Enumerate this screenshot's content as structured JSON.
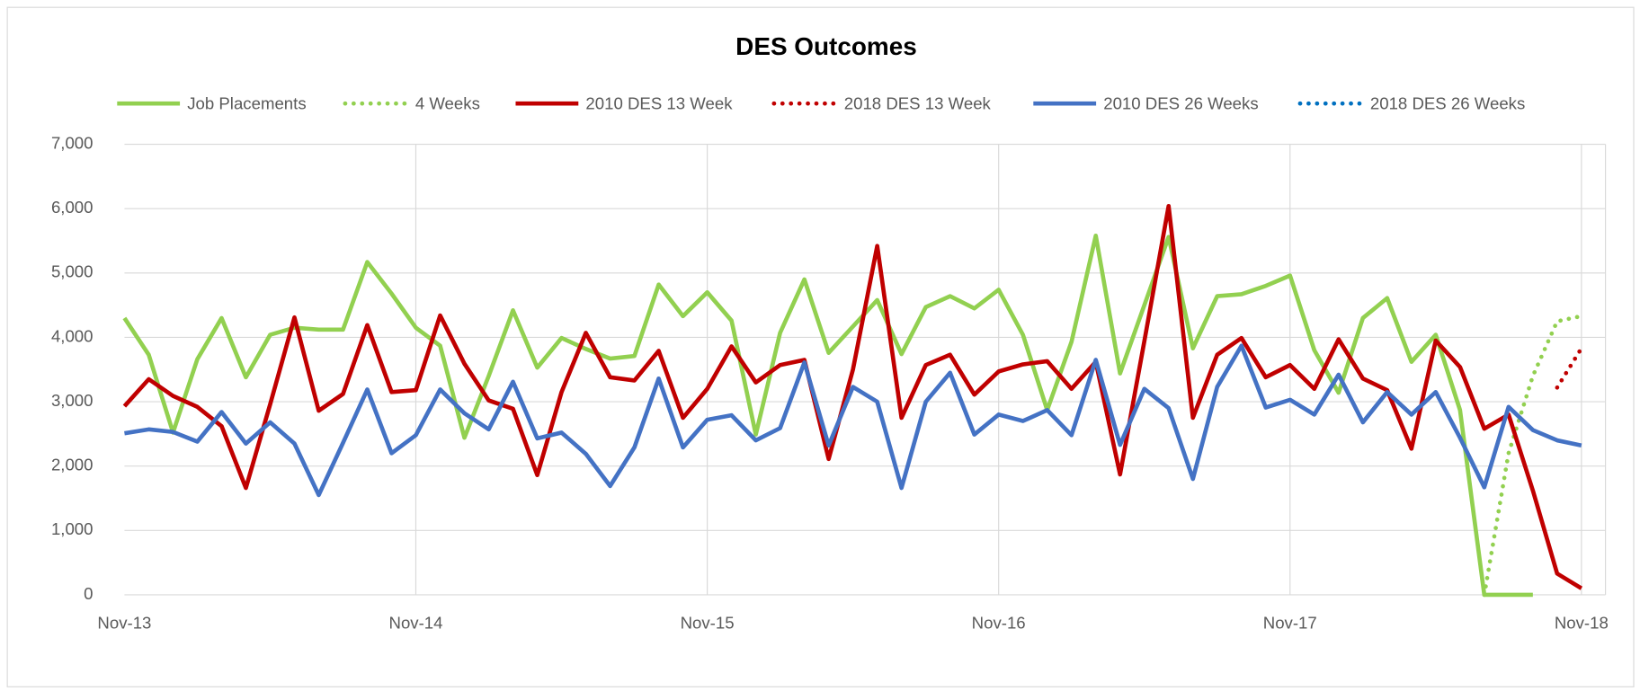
{
  "chart_data": {
    "type": "line",
    "title": "DES Outcomes",
    "categories": [
      "Nov-13",
      null,
      null,
      null,
      null,
      null,
      null,
      null,
      null,
      null,
      null,
      null,
      "Nov-14",
      null,
      null,
      null,
      null,
      null,
      null,
      null,
      null,
      null,
      null,
      null,
      "Nov-15",
      null,
      null,
      null,
      null,
      null,
      null,
      null,
      null,
      null,
      null,
      null,
      "Nov-16",
      null,
      null,
      null,
      null,
      null,
      null,
      null,
      null,
      null,
      null,
      null,
      "Nov-17",
      null,
      null,
      null,
      null,
      null,
      null,
      null,
      null,
      null,
      null,
      null,
      "Nov-18"
    ],
    "series": [
      {
        "name": "Job Placements",
        "color": "#92d050",
        "style": "solid",
        "values": [
          4300,
          3730,
          2520,
          3660,
          4300,
          3380,
          4040,
          4150,
          4120,
          4120,
          5170,
          4680,
          4150,
          3870,
          2440,
          3400,
          4420,
          3530,
          3990,
          3820,
          3670,
          3710,
          4820,
          4330,
          4700,
          4260,
          2490,
          4070,
          4900,
          3760,
          4170,
          4580,
          3740,
          4470,
          4640,
          4450,
          4740,
          4040,
          2870,
          3930,
          5580,
          3440,
          4500,
          5560,
          3830,
          4640,
          4670,
          4800,
          4960,
          3800,
          3140,
          4300,
          4610,
          3620,
          4040,
          2870,
          0,
          0,
          0,
          null,
          null
        ]
      },
      {
        "name": "4 Weeks",
        "color": "#92d050",
        "style": "dotted",
        "values": [
          null,
          null,
          null,
          null,
          null,
          null,
          null,
          null,
          null,
          null,
          null,
          null,
          null,
          null,
          null,
          null,
          null,
          null,
          null,
          null,
          null,
          null,
          null,
          null,
          null,
          null,
          null,
          null,
          null,
          null,
          null,
          null,
          null,
          null,
          null,
          null,
          null,
          null,
          null,
          null,
          null,
          null,
          null,
          null,
          null,
          null,
          null,
          null,
          null,
          null,
          null,
          null,
          null,
          null,
          null,
          null,
          0,
          2200,
          3400,
          4250,
          4330
        ]
      },
      {
        "name": "2010 DES 13 Week",
        "color": "#c00000",
        "style": "solid",
        "values": [
          2930,
          3350,
          3090,
          2920,
          2620,
          1660,
          2960,
          4310,
          2860,
          3120,
          4190,
          3150,
          3180,
          4340,
          3590,
          3020,
          2890,
          1860,
          3150,
          4070,
          3380,
          3330,
          3790,
          2750,
          3200,
          3860,
          3300,
          3570,
          3650,
          2110,
          3500,
          5420,
          2750,
          3570,
          3730,
          3110,
          3470,
          3580,
          3630,
          3200,
          3620,
          1870,
          3940,
          6040,
          2750,
          3730,
          3990,
          3380,
          3570,
          3200,
          3970,
          3360,
          3180,
          2270,
          3950,
          3540,
          2580,
          2800,
          1620,
          330,
          100
        ]
      },
      {
        "name": "2018 DES 13 Week",
        "color": "#c00000",
        "style": "dotted",
        "values": [
          null,
          null,
          null,
          null,
          null,
          null,
          null,
          null,
          null,
          null,
          null,
          null,
          null,
          null,
          null,
          null,
          null,
          null,
          null,
          null,
          null,
          null,
          null,
          null,
          null,
          null,
          null,
          null,
          null,
          null,
          null,
          null,
          null,
          null,
          null,
          null,
          null,
          null,
          null,
          null,
          null,
          null,
          null,
          null,
          null,
          null,
          null,
          null,
          null,
          null,
          null,
          null,
          null,
          null,
          null,
          null,
          null,
          null,
          null,
          3220,
          3830
        ]
      },
      {
        "name": "2010 DES 26 Weeks",
        "color": "#4472c4",
        "style": "solid",
        "values": [
          2510,
          2570,
          2530,
          2380,
          2840,
          2350,
          2680,
          2350,
          1550,
          2360,
          3190,
          2200,
          2480,
          3190,
          2820,
          2570,
          3310,
          2430,
          2520,
          2190,
          1690,
          2290,
          3360,
          2290,
          2720,
          2790,
          2400,
          2590,
          3610,
          2320,
          3230,
          3000,
          1660,
          3000,
          3450,
          2490,
          2800,
          2700,
          2870,
          2480,
          3650,
          2330,
          3200,
          2900,
          1800,
          3230,
          3870,
          2910,
          3030,
          2800,
          3420,
          2680,
          3150,
          2800,
          3150,
          2440,
          1670,
          2920,
          2560,
          2400,
          2320
        ]
      },
      {
        "name": "2018 DES 26 Weeks",
        "color": "#0070c0",
        "style": "dotted",
        "values": [
          null,
          null,
          null,
          null,
          null,
          null,
          null,
          null,
          null,
          null,
          null,
          null,
          null,
          null,
          null,
          null,
          null,
          null,
          null,
          null,
          null,
          null,
          null,
          null,
          null,
          null,
          null,
          null,
          null,
          null,
          null,
          null,
          null,
          null,
          null,
          null,
          null,
          null,
          null,
          null,
          null,
          null,
          null,
          null,
          null,
          null,
          null,
          null,
          null,
          null,
          null,
          null,
          null,
          null,
          null,
          null,
          null,
          null,
          null,
          null,
          null
        ]
      }
    ],
    "ylim": [
      0,
      7000
    ],
    "yticks": [
      0,
      {
        "value": 1000,
        "label": "1,000"
      },
      {
        "value": 2000,
        "label": "2,000"
      },
      {
        "value": 3000,
        "label": "3,000"
      },
      {
        "value": 4000,
        "label": "4,000"
      },
      {
        "value": 5000,
        "label": "5,000"
      },
      {
        "value": 6000,
        "label": "6,000"
      },
      {
        "value": 7000,
        "label": "7,000"
      }
    ],
    "grid": true,
    "legend": "top"
  }
}
